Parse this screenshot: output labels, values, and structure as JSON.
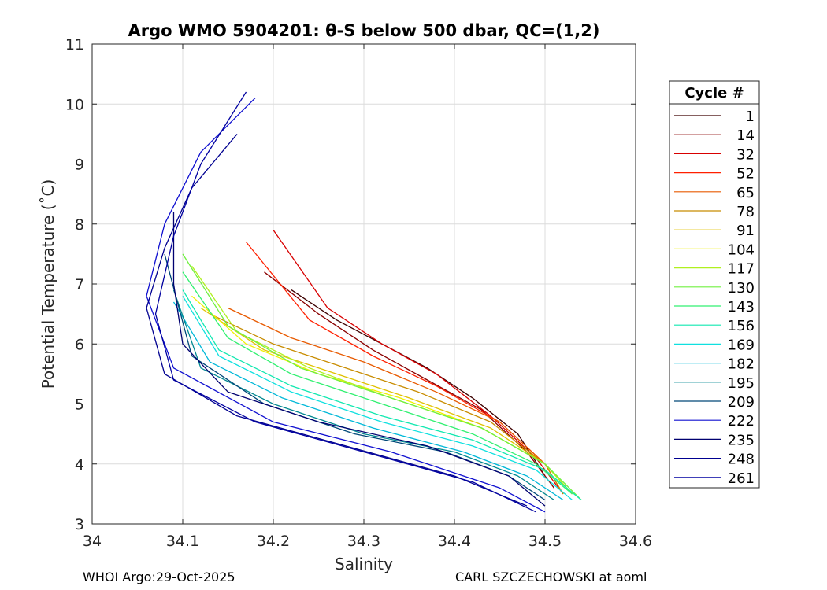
{
  "chart_data": {
    "type": "line",
    "title": "Argo WMO 5904201: θ-S below 500 dbar,  QC=(1,2)",
    "xlabel": "Salinity",
    "ylabel": "Potential Temperature (˚C)",
    "xlim": [
      34.0,
      34.6
    ],
    "ylim": [
      3,
      11
    ],
    "xticks": [
      34.0,
      34.1,
      34.2,
      34.3,
      34.4,
      34.5,
      34.6
    ],
    "xtick_labels": [
      "34",
      "34.1",
      "34.2",
      "34.3",
      "34.4",
      "34.5",
      "34.6"
    ],
    "yticks": [
      3,
      4,
      5,
      6,
      7,
      8,
      9,
      10,
      11
    ],
    "ytick_labels": [
      "3",
      "4",
      "5",
      "6",
      "7",
      "8",
      "9",
      "10",
      "11"
    ],
    "grid": true,
    "legend": {
      "title": "Cycle #",
      "placement": "outside-right",
      "entries": [
        {
          "label": "1",
          "color": "#3d0000"
        },
        {
          "label": "14",
          "color": "#8a0000"
        },
        {
          "label": "32",
          "color": "#d80000"
        },
        {
          "label": "52",
          "color": "#ff2000"
        },
        {
          "label": "65",
          "color": "#e85a00"
        },
        {
          "label": "78",
          "color": "#c88c00"
        },
        {
          "label": "91",
          "color": "#e0c000"
        },
        {
          "label": "104",
          "color": "#f0f000"
        },
        {
          "label": "117",
          "color": "#b0f020"
        },
        {
          "label": "130",
          "color": "#70f040"
        },
        {
          "label": "143",
          "color": "#30f070"
        },
        {
          "label": "156",
          "color": "#10e8b0"
        },
        {
          "label": "169",
          "color": "#10e0e0"
        },
        {
          "label": "182",
          "color": "#00b8d8"
        },
        {
          "label": "195",
          "color": "#008890"
        },
        {
          "label": "209",
          "color": "#004878"
        },
        {
          "label": "222",
          "color": "#1010d0"
        },
        {
          "label": "235",
          "color": "#000070"
        },
        {
          "label": "248",
          "color": "#000090"
        },
        {
          "label": "261",
          "color": "#0000a0"
        }
      ]
    },
    "series": [
      {
        "name": "1",
        "color": "#3d0000",
        "x": [
          34.22,
          34.27,
          34.32,
          34.37,
          34.42,
          34.47,
          34.5
        ],
        "y": [
          6.9,
          6.4,
          6.0,
          5.6,
          5.1,
          4.5,
          3.8
        ]
      },
      {
        "name": "14",
        "color": "#8a0000",
        "x": [
          34.19,
          34.25,
          34.31,
          34.37,
          34.43,
          34.48,
          34.51
        ],
        "y": [
          7.2,
          6.5,
          5.9,
          5.4,
          4.9,
          4.2,
          3.6
        ]
      },
      {
        "name": "32",
        "color": "#d80000",
        "x": [
          34.2,
          34.26,
          34.32,
          34.38,
          34.44,
          34.49,
          34.52
        ],
        "y": [
          7.9,
          6.6,
          6.0,
          5.5,
          4.8,
          4.1,
          3.5
        ]
      },
      {
        "name": "52",
        "color": "#ff2000",
        "x": [
          34.17,
          34.24,
          34.31,
          34.38,
          34.45,
          34.5,
          34.53
        ],
        "y": [
          7.7,
          6.4,
          5.8,
          5.3,
          4.7,
          4.0,
          3.5
        ]
      },
      {
        "name": "65",
        "color": "#e85a00",
        "x": [
          34.15,
          34.22,
          34.3,
          34.38,
          34.45,
          34.5,
          34.52
        ],
        "y": [
          6.6,
          6.1,
          5.7,
          5.2,
          4.7,
          4.0,
          3.5
        ]
      },
      {
        "name": "78",
        "color": "#c88c00",
        "x": [
          34.13,
          34.2,
          34.28,
          34.36,
          34.44,
          34.5,
          34.52
        ],
        "y": [
          6.5,
          6.0,
          5.6,
          5.2,
          4.7,
          4.0,
          3.5
        ]
      },
      {
        "name": "91",
        "color": "#e0c000",
        "x": [
          34.12,
          34.19,
          34.27,
          34.35,
          34.44,
          34.5,
          34.53
        ],
        "y": [
          6.6,
          5.9,
          5.5,
          5.1,
          4.6,
          4.0,
          3.5
        ]
      },
      {
        "name": "104",
        "color": "#f0f000",
        "x": [
          34.11,
          34.17,
          34.25,
          34.34,
          34.43,
          34.5,
          34.53
        ],
        "y": [
          6.8,
          6.0,
          5.5,
          5.1,
          4.6,
          4.0,
          3.5
        ]
      },
      {
        "name": "117",
        "color": "#b0f020",
        "x": [
          34.11,
          34.16,
          34.24,
          34.33,
          34.43,
          34.5,
          34.53
        ],
        "y": [
          7.3,
          6.2,
          5.6,
          5.1,
          4.6,
          4.0,
          3.5
        ]
      },
      {
        "name": "130",
        "color": "#70f040",
        "x": [
          34.1,
          34.15,
          34.23,
          34.33,
          34.43,
          34.5,
          34.54
        ],
        "y": [
          7.5,
          6.3,
          5.6,
          5.1,
          4.6,
          4.0,
          3.4
        ]
      },
      {
        "name": "143",
        "color": "#30f070",
        "x": [
          34.1,
          34.15,
          34.22,
          34.32,
          34.42,
          34.49,
          34.53
        ],
        "y": [
          7.2,
          6.1,
          5.5,
          5.0,
          4.5,
          4.0,
          3.5
        ]
      },
      {
        "name": "156",
        "color": "#10e8b0",
        "x": [
          34.1,
          34.14,
          34.22,
          34.32,
          34.42,
          34.5,
          34.54
        ],
        "y": [
          6.9,
          5.9,
          5.3,
          4.8,
          4.4,
          3.9,
          3.4
        ]
      },
      {
        "name": "169",
        "color": "#10e0e0",
        "x": [
          34.1,
          34.14,
          34.22,
          34.32,
          34.42,
          34.49,
          34.53
        ],
        "y": [
          6.8,
          5.8,
          5.2,
          4.7,
          4.3,
          3.9,
          3.4
        ]
      },
      {
        "name": "182",
        "color": "#00b8d8",
        "x": [
          34.09,
          34.13,
          34.21,
          34.31,
          34.41,
          34.48,
          34.52
        ],
        "y": [
          6.7,
          5.7,
          5.1,
          4.6,
          4.2,
          3.8,
          3.4
        ]
      },
      {
        "name": "195",
        "color": "#008890",
        "x": [
          34.09,
          34.12,
          34.2,
          34.3,
          34.4,
          34.47,
          34.51
        ],
        "y": [
          6.9,
          5.6,
          5.0,
          4.5,
          4.2,
          3.8,
          3.4
        ]
      },
      {
        "name": "209",
        "color": "#004878",
        "x": [
          34.08,
          34.11,
          34.19,
          34.29,
          34.39,
          34.46,
          34.5
        ],
        "y": [
          7.5,
          5.8,
          5.0,
          4.5,
          4.2,
          3.8,
          3.4
        ]
      },
      {
        "name": "222",
        "color": "#1010d0",
        "x": [
          34.18,
          34.12,
          34.08,
          34.06,
          34.09,
          34.2,
          34.33,
          34.45,
          34.5
        ],
        "y": [
          10.1,
          9.2,
          8.0,
          6.8,
          5.6,
          4.7,
          4.2,
          3.6,
          3.2
        ]
      },
      {
        "name": "235",
        "color": "#000070",
        "x": [
          34.09,
          34.09,
          34.1,
          34.15,
          34.25,
          34.37,
          34.46,
          34.5
        ],
        "y": [
          8.2,
          7.0,
          6.0,
          5.2,
          4.7,
          4.3,
          3.8,
          3.3
        ]
      },
      {
        "name": "248",
        "color": "#000090",
        "x": [
          34.16,
          34.11,
          34.08,
          34.06,
          34.08,
          34.16,
          34.28,
          34.4,
          34.48
        ],
        "y": [
          9.5,
          8.6,
          7.6,
          6.6,
          5.5,
          4.8,
          4.3,
          3.8,
          3.3
        ]
      },
      {
        "name": "261",
        "color": "#0000a0",
        "x": [
          34.17,
          34.12,
          34.09,
          34.07,
          34.09,
          34.18,
          34.3,
          34.42,
          34.49
        ],
        "y": [
          10.2,
          9.0,
          7.8,
          6.5,
          5.4,
          4.7,
          4.2,
          3.7,
          3.2
        ]
      }
    ]
  },
  "footer": {
    "left": "WHOI Argo:29-Oct-2025",
    "right": "CARL SZCZECHOWSKI at aoml"
  }
}
